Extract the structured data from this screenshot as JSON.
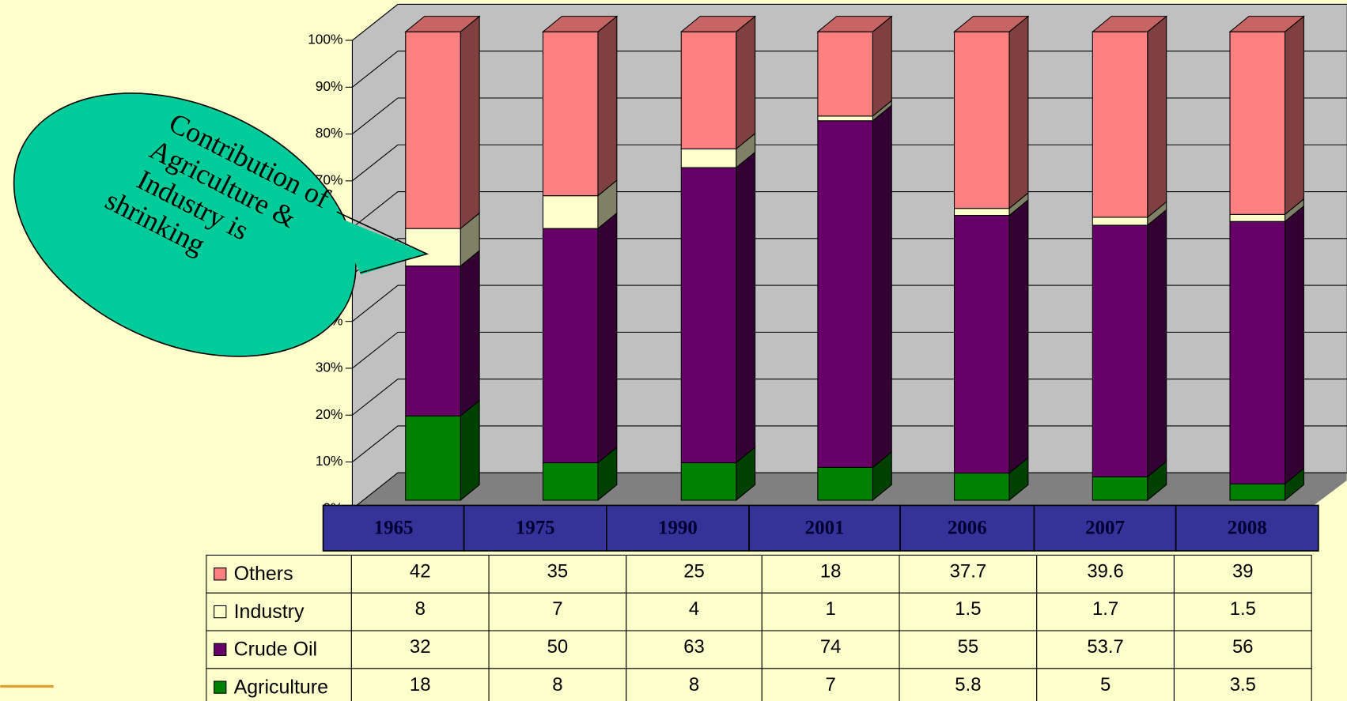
{
  "chart_data": {
    "type": "bar",
    "stacked": true,
    "annotation": [
      "Contribution of",
      "Agriculture &",
      "Industry is",
      "shrinking"
    ],
    "categories": [
      "1965",
      "1975",
      "1990",
      "2001",
      "2006",
      "2007",
      "2008"
    ],
    "series": [
      {
        "name": "Agriculture",
        "color": "#008000",
        "values": [
          18,
          8,
          8,
          7,
          5.8,
          5,
          3.5
        ]
      },
      {
        "name": "Crude Oil",
        "color": "#660066",
        "values": [
          32,
          50,
          63,
          74,
          55,
          53.7,
          56
        ]
      },
      {
        "name": "Industry",
        "color": "#FFFFCC",
        "values": [
          8,
          7,
          4,
          1,
          1.5,
          1.7,
          1.5
        ]
      },
      {
        "name": "Others",
        "color": "#FF8080",
        "values": [
          42,
          35,
          25,
          18,
          37.7,
          39.6,
          39
        ]
      }
    ],
    "ylim": [
      0,
      100
    ],
    "yticks": [
      {
        "value": 0,
        "label": "0%"
      },
      {
        "value": 10,
        "label": "10%"
      },
      {
        "value": 20,
        "label": "20%"
      },
      {
        "value": 30,
        "label": "30%"
      },
      {
        "value": 40,
        "label": "40%"
      },
      {
        "value": 50,
        "label": "50%"
      },
      {
        "value": 60,
        "label": "60%"
      },
      {
        "value": 70,
        "label": "70%"
      },
      {
        "value": 80,
        "label": "80%"
      },
      {
        "value": 90,
        "label": "90%"
      },
      {
        "value": 100,
        "label": "100%"
      }
    ],
    "grid": true
  }
}
